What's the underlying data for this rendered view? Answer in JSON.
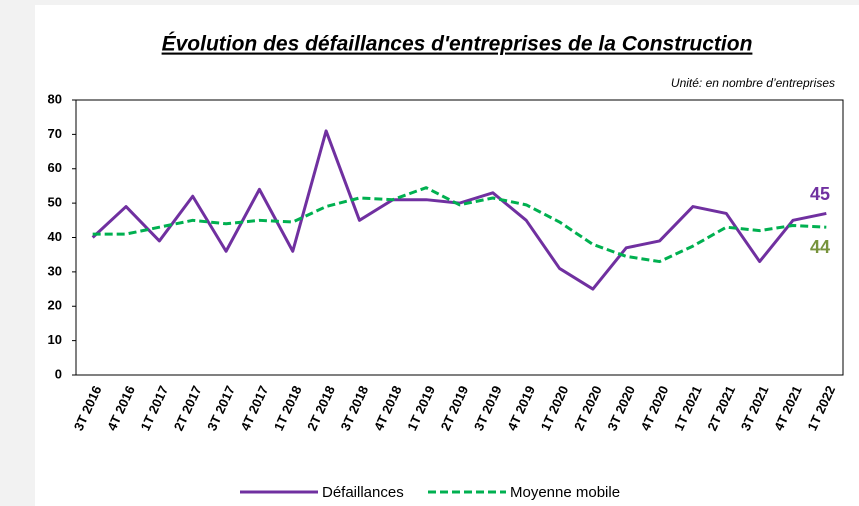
{
  "chart_data": {
    "type": "line",
    "title": "Évolution des défaillances d'entreprises de la Construction",
    "subtitle": "Unité: en nombre d’entreprises",
    "categories": [
      "3T 2016",
      "4T 2016",
      "1T 2017",
      "2T 2017",
      "3T 2017",
      "4T 2017",
      "1T 2018",
      "2T 2018",
      "3T 2018",
      "4T 2018",
      "1T 2019",
      "2T 2019",
      "3T 2019",
      "4T 2019",
      "1T 2020",
      "2T 2020",
      "3T 2020",
      "4T 2020",
      "1T 2021",
      "2T 2021",
      "3T 2021",
      "4T 2021",
      "1T 2022"
    ],
    "series": [
      {
        "name": "Défaillances",
        "color": "#7030a0",
        "dash": false,
        "values": [
          40,
          49,
          39,
          52,
          36,
          54,
          36,
          71,
          45,
          51,
          51,
          50,
          53,
          45,
          31,
          25,
          37,
          39,
          49,
          47,
          33,
          45,
          47
        ]
      },
      {
        "name": "Moyenne mobile",
        "color": "#00b050",
        "dash": true,
        "values": [
          41,
          41,
          43,
          45,
          44,
          45,
          44.5,
          49,
          51.5,
          51,
          54.5,
          49.5,
          51.5,
          49.5,
          44.5,
          38,
          34.5,
          33,
          37.5,
          43,
          42,
          43.5,
          43
        ]
      }
    ],
    "annotations": [
      {
        "text": "45",
        "color": "#7030a0"
      },
      {
        "text": "44",
        "color": "#77933c"
      }
    ],
    "ylim": [
      0,
      80
    ],
    "yticks": [
      0,
      10,
      20,
      30,
      40,
      50,
      60,
      70,
      80
    ],
    "legend": "bottom"
  }
}
